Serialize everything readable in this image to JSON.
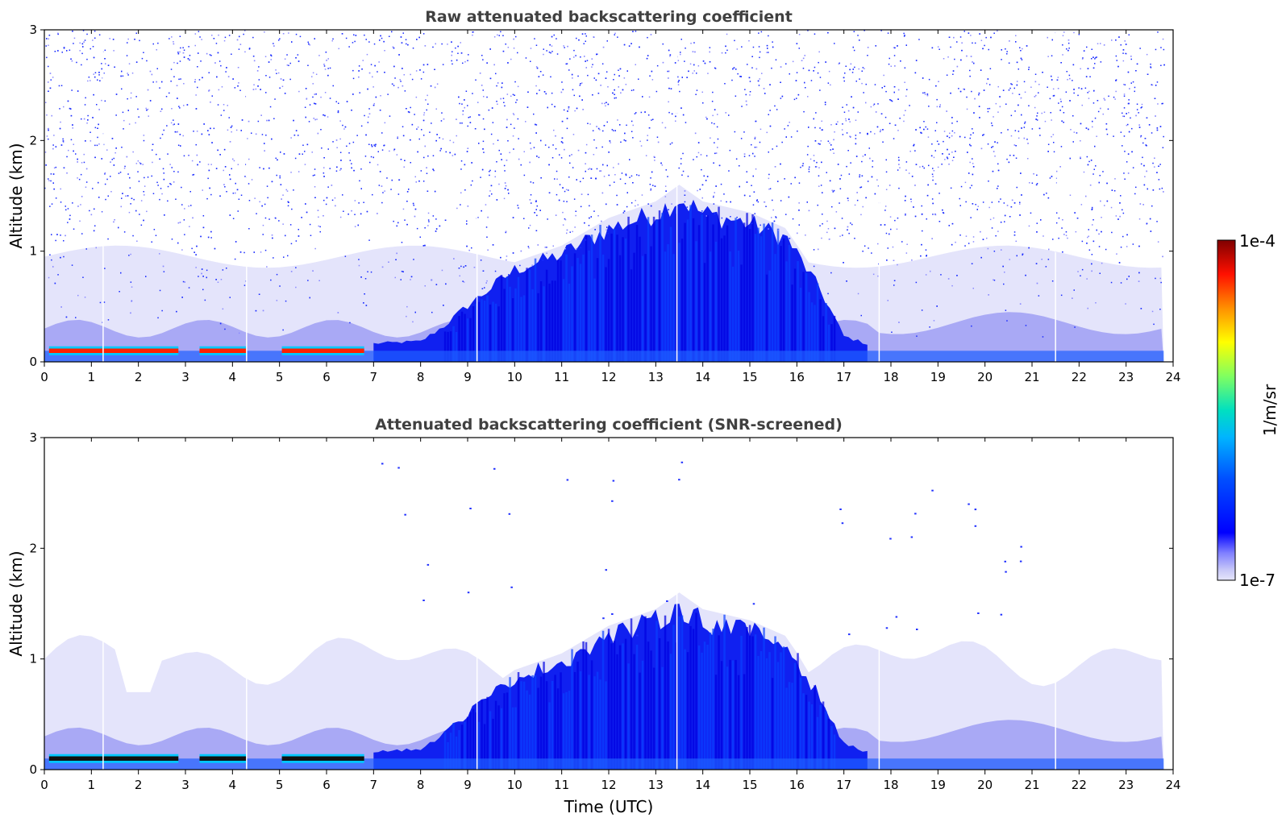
{
  "chart_data": [
    {
      "type": "heatmap",
      "title": "Raw attenuated backscattering coefficient",
      "xlabel": "",
      "ylabel": "Altitude (km)",
      "xlim": [
        0,
        24
      ],
      "ylim": [
        0,
        3
      ],
      "x_ticks": [
        "0",
        "1",
        "2",
        "3",
        "4",
        "5",
        "6",
        "7",
        "8",
        "9",
        "10",
        "11",
        "12",
        "13",
        "14",
        "15",
        "16",
        "17",
        "18",
        "19",
        "20",
        "21",
        "22",
        "23",
        "24"
      ],
      "y_ticks": [
        "0",
        "1",
        "2",
        "3"
      ],
      "screened": false,
      "boundary_layer_top_km": [
        {
          "t": 0,
          "h": 0.15
        },
        {
          "t": 7,
          "h": 0.18
        },
        {
          "t": 8,
          "h": 0.2
        },
        {
          "t": 8.5,
          "h": 0.35
        },
        {
          "t": 9,
          "h": 0.55
        },
        {
          "t": 10,
          "h": 0.9
        },
        {
          "t": 11,
          "h": 1.05
        },
        {
          "t": 12,
          "h": 1.3
        },
        {
          "t": 13,
          "h": 1.45
        },
        {
          "t": 13.5,
          "h": 1.6
        },
        {
          "t": 14,
          "h": 1.45
        },
        {
          "t": 15,
          "h": 1.35
        },
        {
          "t": 15.8,
          "h": 1.2
        },
        {
          "t": 16.5,
          "h": 0.7
        },
        {
          "t": 17,
          "h": 0.25
        },
        {
          "t": 18,
          "h": 0.1
        },
        {
          "t": 23.8,
          "h": 0.1
        }
      ]
    },
    {
      "type": "heatmap",
      "title": "Attenuated backscattering coefficient (SNR-screened)",
      "xlabel": "Time (UTC)",
      "ylabel": "Altitude (km)",
      "xlim": [
        0,
        24
      ],
      "ylim": [
        0,
        3
      ],
      "x_ticks": [
        "0",
        "1",
        "2",
        "3",
        "4",
        "5",
        "6",
        "7",
        "8",
        "9",
        "10",
        "11",
        "12",
        "13",
        "14",
        "15",
        "16",
        "17",
        "18",
        "19",
        "20",
        "21",
        "22",
        "23",
        "24"
      ],
      "y_ticks": [
        "0",
        "1",
        "2",
        "3"
      ],
      "screened": true,
      "boundary_layer_top_km": [
        {
          "t": 0,
          "h": 0.15
        },
        {
          "t": 7,
          "h": 0.18
        },
        {
          "t": 8,
          "h": 0.2
        },
        {
          "t": 8.5,
          "h": 0.35
        },
        {
          "t": 9,
          "h": 0.55
        },
        {
          "t": 10,
          "h": 0.9
        },
        {
          "t": 11,
          "h": 1.05
        },
        {
          "t": 12,
          "h": 1.3
        },
        {
          "t": 13,
          "h": 1.45
        },
        {
          "t": 13.5,
          "h": 1.6
        },
        {
          "t": 14,
          "h": 1.45
        },
        {
          "t": 15,
          "h": 1.35
        },
        {
          "t": 15.8,
          "h": 1.2
        },
        {
          "t": 16.5,
          "h": 0.7
        },
        {
          "t": 17,
          "h": 0.25
        },
        {
          "t": 18,
          "h": 0.1
        },
        {
          "t": 23.8,
          "h": 0.1
        }
      ]
    }
  ],
  "colorbar": {
    "label": "1/m/sr",
    "min_label": "1e-7",
    "max_label": "1e-4",
    "colormap": "jet",
    "scale": "log"
  }
}
